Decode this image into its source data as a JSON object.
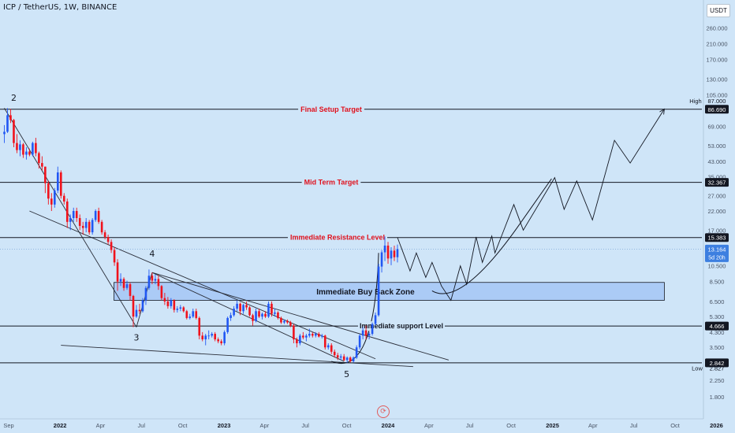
{
  "header": {
    "title": "ICP / TetherUS, 1W, BINANCE",
    "quote_currency": "USDT"
  },
  "chart_data": {
    "type": "candlestick",
    "title": "ICP / TetherUS, 1W, BINANCE",
    "y_scale": "log",
    "ylim": [
      1.55,
      340
    ],
    "y_axis_ticks": [
      "260.000",
      "210.000",
      "170.000",
      "130.000",
      "105.000",
      "87.000",
      "69.000",
      "53.000",
      "43.000",
      "35.000",
      "27.000",
      "22.000",
      "17.000",
      "10.500",
      "8.500",
      "6.500",
      "5.300",
      "4.300",
      "3.500",
      "2.250",
      "1.800"
    ],
    "x_axis_ticks": [
      "Sep",
      "2022",
      "Apr",
      "Jul",
      "Oct",
      "2023",
      "Apr",
      "Jul",
      "Oct",
      "2024",
      "Apr",
      "Jul",
      "Oct",
      "2025",
      "Apr",
      "Jul",
      "Oct",
      "2026"
    ],
    "price_labels": [
      {
        "text": "86.690",
        "price": 86.69,
        "style": "dark",
        "side_label": "High"
      },
      {
        "text": "32.367",
        "price": 32.367,
        "style": "dark"
      },
      {
        "text": "15.383",
        "price": 15.383,
        "style": "dark"
      },
      {
        "text": "13.164",
        "sub": "5d 20h",
        "price": 13.164,
        "style": "blue"
      },
      {
        "text": "4.666",
        "price": 4.666,
        "style": "dark"
      },
      {
        "text": "2.842",
        "price": 2.842,
        "style": "dark"
      },
      {
        "text": "2.827",
        "price": 2.827,
        "style": "plain",
        "side_label": "Low"
      }
    ],
    "horizontal_levels": [
      {
        "price": 86.69,
        "label": "Final Setup Target",
        "color": "#e0101c"
      },
      {
        "price": 32.367,
        "label": "Mid Term Target",
        "color": "#e0101c"
      },
      {
        "price": 15.383,
        "label": "Immediate Resistance Level",
        "color": "#e0101c"
      },
      {
        "price": 4.666,
        "label": "Immediate support Level",
        "color": "#131722"
      },
      {
        "price": 2.842,
        "label": "",
        "color": "#131722"
      }
    ],
    "zones": [
      {
        "label": "Immediate Buy Back Zone",
        "price_low": 6.6,
        "price_high": 8.4,
        "date_start": "2022-05-01",
        "date_end": "2025-09-07",
        "fill": "#a9c9f5"
      }
    ],
    "wave_labels": [
      {
        "text": "2",
        "date": "2021-09-20",
        "price": 97
      },
      {
        "text": "3",
        "date": "2022-06-20",
        "price": 3.85
      },
      {
        "text": "4",
        "date": "2022-07-25",
        "price": 11.9
      },
      {
        "text": "5",
        "date": "2023-10-01",
        "price": 2.35
      }
    ],
    "projection_path": [
      {
        "date": "2024-01-22",
        "price": 15.4
      },
      {
        "date": "2024-02-19",
        "price": 9.8
      },
      {
        "date": "2024-03-04",
        "price": 12.5
      },
      {
        "date": "2024-03-25",
        "price": 9.0
      },
      {
        "date": "2024-04-08",
        "price": 11.0
      },
      {
        "date": "2024-04-29",
        "price": 8.0
      },
      {
        "date": "2024-05-20",
        "price": 6.6
      },
      {
        "date": "2024-06-10",
        "price": 10.5
      },
      {
        "date": "2024-06-24",
        "price": 8.2
      },
      {
        "date": "2024-07-15",
        "price": 15.5
      },
      {
        "date": "2024-07-29",
        "price": 11.0
      },
      {
        "date": "2024-08-19",
        "price": 15.7
      },
      {
        "date": "2024-08-26",
        "price": 12.5
      },
      {
        "date": "2024-10-07",
        "price": 24.0
      },
      {
        "date": "2024-10-28",
        "price": 17.0
      },
      {
        "date": "2025-01-06",
        "price": 34.5
      },
      {
        "date": "2025-01-27",
        "price": 22.5
      },
      {
        "date": "2025-02-24",
        "price": 33.0
      },
      {
        "date": "2025-03-31",
        "price": 19.5
      },
      {
        "date": "2025-05-19",
        "price": 57.0
      },
      {
        "date": "2025-06-23",
        "price": 42.0
      },
      {
        "date": "2025-09-07",
        "price": 87.0
      }
    ],
    "candles": [
      {
        "date": "2021-08-30",
        "o": 62,
        "h": 70,
        "l": 55,
        "c": 64
      },
      {
        "date": "2021-09-06",
        "o": 64,
        "h": 88,
        "l": 63,
        "c": 80
      },
      {
        "date": "2021-09-13",
        "o": 80,
        "h": 87,
        "l": 72,
        "c": 75
      },
      {
        "date": "2021-09-20",
        "o": 75,
        "h": 76,
        "l": 52,
        "c": 55
      },
      {
        "date": "2021-09-27",
        "o": 55,
        "h": 62,
        "l": 48,
        "c": 50
      },
      {
        "date": "2021-10-04",
        "o": 50,
        "h": 57,
        "l": 46,
        "c": 54
      },
      {
        "date": "2021-10-11",
        "o": 54,
        "h": 55,
        "l": 45,
        "c": 47
      },
      {
        "date": "2021-10-18",
        "o": 47,
        "h": 52,
        "l": 44,
        "c": 49
      },
      {
        "date": "2021-10-25",
        "o": 49,
        "h": 51,
        "l": 46,
        "c": 47
      },
      {
        "date": "2021-11-01",
        "o": 47,
        "h": 56,
        "l": 46,
        "c": 55
      },
      {
        "date": "2021-11-08",
        "o": 55,
        "h": 59,
        "l": 46,
        "c": 48
      },
      {
        "date": "2021-11-15",
        "o": 48,
        "h": 49,
        "l": 39,
        "c": 42
      },
      {
        "date": "2021-11-22",
        "o": 42,
        "h": 46,
        "l": 38,
        "c": 40
      },
      {
        "date": "2021-11-29",
        "o": 40,
        "h": 40,
        "l": 28,
        "c": 32
      },
      {
        "date": "2021-12-06",
        "o": 32,
        "h": 33,
        "l": 24,
        "c": 26
      },
      {
        "date": "2021-12-13",
        "o": 26,
        "h": 28,
        "l": 22,
        "c": 24
      },
      {
        "date": "2021-12-20",
        "o": 24,
        "h": 30,
        "l": 23,
        "c": 29
      },
      {
        "date": "2021-12-27",
        "o": 29,
        "h": 40,
        "l": 28,
        "c": 37
      },
      {
        "date": "2022-01-03",
        "o": 37,
        "h": 38,
        "l": 26,
        "c": 27
      },
      {
        "date": "2022-01-10",
        "o": 27,
        "h": 28,
        "l": 24,
        "c": 25
      },
      {
        "date": "2022-01-17",
        "o": 25,
        "h": 26,
        "l": 17.5,
        "c": 19
      },
      {
        "date": "2022-01-24",
        "o": 19,
        "h": 21,
        "l": 17,
        "c": 20
      },
      {
        "date": "2022-01-31",
        "o": 20,
        "h": 23,
        "l": 19,
        "c": 22
      },
      {
        "date": "2022-02-07",
        "o": 22,
        "h": 23,
        "l": 19,
        "c": 20
      },
      {
        "date": "2022-02-14",
        "o": 20,
        "h": 21,
        "l": 17,
        "c": 18
      },
      {
        "date": "2022-02-21",
        "o": 18,
        "h": 19,
        "l": 16,
        "c": 17.5
      },
      {
        "date": "2022-02-28",
        "o": 17.5,
        "h": 20,
        "l": 16.5,
        "c": 19
      },
      {
        "date": "2022-03-07",
        "o": 19,
        "h": 19.5,
        "l": 16,
        "c": 16.5
      },
      {
        "date": "2022-03-14",
        "o": 16.5,
        "h": 20,
        "l": 16,
        "c": 19.5
      },
      {
        "date": "2022-03-21",
        "o": 19.5,
        "h": 22.5,
        "l": 19,
        "c": 22
      },
      {
        "date": "2022-03-28",
        "o": 22,
        "h": 23,
        "l": 18.5,
        "c": 19
      },
      {
        "date": "2022-04-04",
        "o": 19,
        "h": 19.5,
        "l": 16,
        "c": 16.5
      },
      {
        "date": "2022-04-11",
        "o": 16.5,
        "h": 17,
        "l": 15,
        "c": 15.5
      },
      {
        "date": "2022-04-18",
        "o": 15.5,
        "h": 16,
        "l": 14,
        "c": 14.5
      },
      {
        "date": "2022-04-25",
        "o": 14.5,
        "h": 15,
        "l": 12.5,
        "c": 13
      },
      {
        "date": "2022-05-02",
        "o": 13,
        "h": 13.5,
        "l": 10.5,
        "c": 11
      },
      {
        "date": "2022-05-09",
        "o": 11,
        "h": 11.5,
        "l": 7.5,
        "c": 8.5
      },
      {
        "date": "2022-05-16",
        "o": 8.5,
        "h": 9.5,
        "l": 8,
        "c": 8.8
      },
      {
        "date": "2022-05-23",
        "o": 8.8,
        "h": 9,
        "l": 7.5,
        "c": 7.8
      },
      {
        "date": "2022-05-30",
        "o": 7.8,
        "h": 8.6,
        "l": 7.6,
        "c": 8.2
      },
      {
        "date": "2022-06-06",
        "o": 8.2,
        "h": 8.4,
        "l": 6.6,
        "c": 7
      },
      {
        "date": "2022-06-13",
        "o": 7,
        "h": 7.1,
        "l": 4.6,
        "c": 5.3
      },
      {
        "date": "2022-06-20",
        "o": 5.3,
        "h": 6.2,
        "l": 5.2,
        "c": 5.8
      },
      {
        "date": "2022-06-27",
        "o": 5.8,
        "h": 6.3,
        "l": 5.5,
        "c": 5.7
      },
      {
        "date": "2022-07-04",
        "o": 5.7,
        "h": 6.8,
        "l": 5.6,
        "c": 6.6
      },
      {
        "date": "2022-07-11",
        "o": 6.6,
        "h": 8,
        "l": 6.2,
        "c": 7.8
      },
      {
        "date": "2022-07-18",
        "o": 7.8,
        "h": 10,
        "l": 7.6,
        "c": 9.2
      },
      {
        "date": "2022-07-25",
        "o": 9.2,
        "h": 9.6,
        "l": 8.2,
        "c": 8.6
      },
      {
        "date": "2022-08-01",
        "o": 8.6,
        "h": 9.4,
        "l": 8.2,
        "c": 8.8
      },
      {
        "date": "2022-08-08",
        "o": 8.8,
        "h": 9.3,
        "l": 7.6,
        "c": 8
      },
      {
        "date": "2022-08-15",
        "o": 8,
        "h": 8.1,
        "l": 6.6,
        "c": 6.8
      },
      {
        "date": "2022-08-22",
        "o": 6.8,
        "h": 7.3,
        "l": 6.2,
        "c": 6.5
      },
      {
        "date": "2022-08-29",
        "o": 6.5,
        "h": 6.9,
        "l": 5.9,
        "c": 6.1
      },
      {
        "date": "2022-09-05",
        "o": 6.1,
        "h": 6.8,
        "l": 5.9,
        "c": 6.6
      },
      {
        "date": "2022-09-12",
        "o": 6.6,
        "h": 6.7,
        "l": 5.6,
        "c": 5.8
      },
      {
        "date": "2022-09-19",
        "o": 5.8,
        "h": 6.1,
        "l": 5.6,
        "c": 5.9
      },
      {
        "date": "2022-09-26",
        "o": 5.9,
        "h": 6.2,
        "l": 5.7,
        "c": 6
      },
      {
        "date": "2022-10-03",
        "o": 6,
        "h": 6.1,
        "l": 5.6,
        "c": 5.7
      },
      {
        "date": "2022-10-10",
        "o": 5.7,
        "h": 5.8,
        "l": 5.1,
        "c": 5.2
      },
      {
        "date": "2022-10-17",
        "o": 5.2,
        "h": 5.5,
        "l": 5.1,
        "c": 5.3
      },
      {
        "date": "2022-10-24",
        "o": 5.3,
        "h": 5.9,
        "l": 5.2,
        "c": 5.7
      },
      {
        "date": "2022-10-31",
        "o": 5.7,
        "h": 5.9,
        "l": 5.1,
        "c": 5.2
      },
      {
        "date": "2022-11-07",
        "o": 5.2,
        "h": 5.3,
        "l": 3.9,
        "c": 4.1
      },
      {
        "date": "2022-11-14",
        "o": 4.1,
        "h": 4.3,
        "l": 3.8,
        "c": 3.9
      },
      {
        "date": "2022-11-21",
        "o": 3.9,
        "h": 4.2,
        "l": 3.6,
        "c": 4.1
      },
      {
        "date": "2022-11-28",
        "o": 4.1,
        "h": 4.4,
        "l": 3.9,
        "c": 4.1
      },
      {
        "date": "2022-12-05",
        "o": 4.1,
        "h": 4.3,
        "l": 4,
        "c": 4.2
      },
      {
        "date": "2022-12-12",
        "o": 4.2,
        "h": 4.3,
        "l": 3.8,
        "c": 3.9
      },
      {
        "date": "2022-12-19",
        "o": 3.9,
        "h": 4,
        "l": 3.7,
        "c": 3.8
      },
      {
        "date": "2022-12-26",
        "o": 3.8,
        "h": 3.9,
        "l": 3.6,
        "c": 3.7
      },
      {
        "date": "2023-01-02",
        "o": 3.7,
        "h": 4.4,
        "l": 3.6,
        "c": 4.3
      },
      {
        "date": "2023-01-09",
        "o": 4.3,
        "h": 5.3,
        "l": 4.2,
        "c": 5.2
      },
      {
        "date": "2023-01-16",
        "o": 5.2,
        "h": 5.6,
        "l": 5,
        "c": 5.4
      },
      {
        "date": "2023-01-23",
        "o": 5.4,
        "h": 6.1,
        "l": 5.3,
        "c": 5.9
      },
      {
        "date": "2023-01-30",
        "o": 5.9,
        "h": 6.6,
        "l": 5.7,
        "c": 6.3
      },
      {
        "date": "2023-02-06",
        "o": 6.3,
        "h": 6.4,
        "l": 5.4,
        "c": 5.7
      },
      {
        "date": "2023-02-13",
        "o": 5.7,
        "h": 6.3,
        "l": 5.5,
        "c": 6.2
      },
      {
        "date": "2023-02-20",
        "o": 6.2,
        "h": 6.5,
        "l": 5.8,
        "c": 6
      },
      {
        "date": "2023-02-27",
        "o": 6,
        "h": 6.1,
        "l": 5.3,
        "c": 5.4
      },
      {
        "date": "2023-03-06",
        "o": 5.4,
        "h": 5.5,
        "l": 4.7,
        "c": 5
      },
      {
        "date": "2023-03-13",
        "o": 5,
        "h": 5.9,
        "l": 4.9,
        "c": 5.7
      },
      {
        "date": "2023-03-20",
        "o": 5.7,
        "h": 5.9,
        "l": 5.2,
        "c": 5.3
      },
      {
        "date": "2023-03-27",
        "o": 5.3,
        "h": 5.6,
        "l": 5.1,
        "c": 5.5
      },
      {
        "date": "2023-04-03",
        "o": 5.5,
        "h": 5.7,
        "l": 5.2,
        "c": 5.3
      },
      {
        "date": "2023-04-10",
        "o": 5.3,
        "h": 6.5,
        "l": 5.2,
        "c": 6.3
      },
      {
        "date": "2023-04-17",
        "o": 6.3,
        "h": 6.5,
        "l": 5.3,
        "c": 5.5
      },
      {
        "date": "2023-04-24",
        "o": 5.5,
        "h": 5.9,
        "l": 5.3,
        "c": 5.6
      },
      {
        "date": "2023-05-01",
        "o": 5.6,
        "h": 5.7,
        "l": 5.1,
        "c": 5.2
      },
      {
        "date": "2023-05-08",
        "o": 5.2,
        "h": 5.3,
        "l": 4.8,
        "c": 4.9
      },
      {
        "date": "2023-05-15",
        "o": 4.9,
        "h": 5.1,
        "l": 4.8,
        "c": 5
      },
      {
        "date": "2023-05-22",
        "o": 5,
        "h": 5.1,
        "l": 4.8,
        "c": 4.9
      },
      {
        "date": "2023-05-29",
        "o": 4.9,
        "h": 5,
        "l": 4.6,
        "c": 4.7
      },
      {
        "date": "2023-06-05",
        "o": 4.7,
        "h": 4.8,
        "l": 3.7,
        "c": 3.9
      },
      {
        "date": "2023-06-12",
        "o": 3.9,
        "h": 4,
        "l": 3.5,
        "c": 3.7
      },
      {
        "date": "2023-06-19",
        "o": 3.7,
        "h": 4.2,
        "l": 3.6,
        "c": 4.1
      },
      {
        "date": "2023-06-26",
        "o": 4.1,
        "h": 4.3,
        "l": 3.9,
        "c": 4
      },
      {
        "date": "2023-07-03",
        "o": 4,
        "h": 4.2,
        "l": 3.8,
        "c": 4.1
      },
      {
        "date": "2023-07-10",
        "o": 4.1,
        "h": 4.5,
        "l": 4,
        "c": 4.2
      },
      {
        "date": "2023-07-17",
        "o": 4.2,
        "h": 4.3,
        "l": 4,
        "c": 4.1
      },
      {
        "date": "2023-07-24",
        "o": 4.1,
        "h": 4.3,
        "l": 4,
        "c": 4.2
      },
      {
        "date": "2023-07-31",
        "o": 4.2,
        "h": 4.3,
        "l": 4,
        "c": 4.05
      },
      {
        "date": "2023-08-07",
        "o": 4.05,
        "h": 4.2,
        "l": 3.95,
        "c": 4.1
      },
      {
        "date": "2023-08-14",
        "o": 4.1,
        "h": 4.15,
        "l": 3.4,
        "c": 3.5
      },
      {
        "date": "2023-08-21",
        "o": 3.5,
        "h": 3.7,
        "l": 3.4,
        "c": 3.6
      },
      {
        "date": "2023-08-28",
        "o": 3.6,
        "h": 3.7,
        "l": 3.2,
        "c": 3.3
      },
      {
        "date": "2023-09-04",
        "o": 3.3,
        "h": 3.4,
        "l": 3.05,
        "c": 3.15
      },
      {
        "date": "2023-09-11",
        "o": 3.15,
        "h": 3.25,
        "l": 2.95,
        "c": 3.05
      },
      {
        "date": "2023-09-18",
        "o": 3.05,
        "h": 3.2,
        "l": 2.95,
        "c": 3.1
      },
      {
        "date": "2023-09-25",
        "o": 3.1,
        "h": 3.2,
        "l": 2.9,
        "c": 2.95
      },
      {
        "date": "2023-10-02",
        "o": 2.95,
        "h": 3.1,
        "l": 2.84,
        "c": 3.05
      },
      {
        "date": "2023-10-09",
        "o": 3.05,
        "h": 3.1,
        "l": 2.85,
        "c": 2.9
      },
      {
        "date": "2023-10-16",
        "o": 2.9,
        "h": 3.1,
        "l": 2.85,
        "c": 3.05
      },
      {
        "date": "2023-10-23",
        "o": 3.05,
        "h": 3.6,
        "l": 3,
        "c": 3.5
      },
      {
        "date": "2023-10-30",
        "o": 3.5,
        "h": 4.2,
        "l": 3.4,
        "c": 4.1
      },
      {
        "date": "2023-11-06",
        "o": 4.1,
        "h": 4.6,
        "l": 3.9,
        "c": 4.4
      },
      {
        "date": "2023-11-13",
        "o": 4.4,
        "h": 4.7,
        "l": 3.9,
        "c": 4.1
      },
      {
        "date": "2023-11-20",
        "o": 4.1,
        "h": 4.3,
        "l": 3.9,
        "c": 4.2
      },
      {
        "date": "2023-11-27",
        "o": 4.2,
        "h": 4.9,
        "l": 4.1,
        "c": 4.8
      },
      {
        "date": "2023-12-04",
        "o": 4.8,
        "h": 5.6,
        "l": 4.7,
        "c": 5.4
      },
      {
        "date": "2023-12-11",
        "o": 5.4,
        "h": 10.8,
        "l": 5.3,
        "c": 10.4
      },
      {
        "date": "2023-12-18",
        "o": 10.4,
        "h": 13,
        "l": 9.6,
        "c": 12.6
      },
      {
        "date": "2023-12-25",
        "o": 12.6,
        "h": 15.6,
        "l": 11.2,
        "c": 13.8
      },
      {
        "date": "2024-01-01",
        "o": 13.8,
        "h": 14.5,
        "l": 10.8,
        "c": 11.6
      },
      {
        "date": "2024-01-08",
        "o": 11.6,
        "h": 13.5,
        "l": 10.6,
        "c": 12.9
      },
      {
        "date": "2024-01-15",
        "o": 12.9,
        "h": 13.8,
        "l": 11.2,
        "c": 11.8
      },
      {
        "date": "2024-01-22",
        "o": 11.8,
        "h": 14,
        "l": 11,
        "c": 13.164
      }
    ]
  }
}
